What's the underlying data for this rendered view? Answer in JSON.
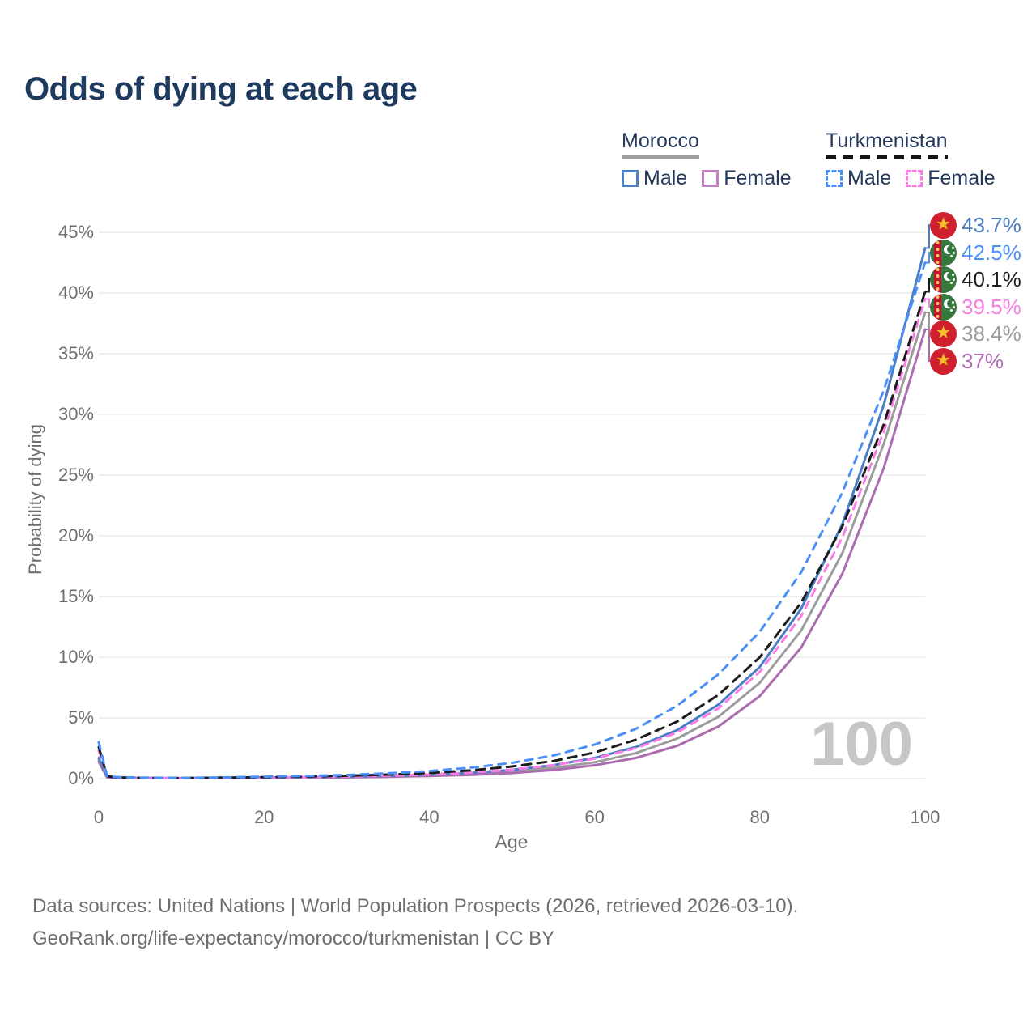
{
  "title": "Odds of dying at each age",
  "legend": {
    "groups": [
      {
        "name": "Morocco",
        "line_style": "solid",
        "underline_color": "#9e9e9e",
        "items": [
          {
            "label": "Male",
            "color": "#4a7ec6",
            "dashed": false
          },
          {
            "label": "Female",
            "color": "#c07fc0",
            "dashed": false
          }
        ]
      },
      {
        "name": "Turkmenistan",
        "line_style": "dashed",
        "underline_color": "#151515",
        "items": [
          {
            "label": "Male",
            "color": "#4a90f7",
            "dashed": true
          },
          {
            "label": "Female",
            "color": "#fb7ce4",
            "dashed": true
          }
        ]
      }
    ]
  },
  "chart_data": {
    "type": "line",
    "title": "Odds of dying at each age",
    "xlabel": "Age",
    "ylabel": "Probability of dying",
    "xlim": [
      0,
      100
    ],
    "ylim_pct": [
      0,
      46
    ],
    "xticks": [
      0,
      20,
      40,
      60,
      80,
      100
    ],
    "yticks": [
      "0%",
      "5%",
      "10%",
      "15%",
      "20%",
      "25%",
      "30%",
      "35%",
      "40%",
      "45%"
    ],
    "grid": "horizontal",
    "legend_position": "top-right",
    "x": [
      0,
      1,
      2,
      5,
      10,
      15,
      20,
      25,
      30,
      35,
      40,
      45,
      50,
      55,
      60,
      65,
      70,
      75,
      80,
      85,
      90,
      95,
      100
    ],
    "series": [
      {
        "name": "Morocco Male",
        "country": "Morocco",
        "color": "#4a7ec6",
        "dashed": false,
        "end_label": "43.7%",
        "values_pct": [
          1.7,
          0.14,
          0.09,
          0.05,
          0.04,
          0.06,
          0.09,
          0.12,
          0.16,
          0.23,
          0.33,
          0.48,
          0.72,
          1.1,
          1.7,
          2.6,
          4.0,
          6.1,
          9.2,
          14.0,
          21.0,
          30.8,
          43.7
        ]
      },
      {
        "name": "Turkmenistan Male",
        "country": "Turkmenistan",
        "color": "#4a90f7",
        "dashed": true,
        "end_label": "42.5%",
        "values_pct": [
          3.0,
          0.22,
          0.13,
          0.08,
          0.06,
          0.1,
          0.16,
          0.22,
          0.3,
          0.44,
          0.62,
          0.9,
          1.3,
          1.9,
          2.8,
          4.1,
          6.0,
          8.6,
          12.1,
          17.0,
          23.6,
          32.0,
          42.5
        ]
      },
      {
        "name": "Turkmenistan",
        "country": "Turkmenistan",
        "color": "#1c1c1c",
        "dashed": true,
        "end_label": "40.1%",
        "values_pct": [
          2.6,
          0.19,
          0.11,
          0.07,
          0.05,
          0.08,
          0.12,
          0.17,
          0.23,
          0.33,
          0.47,
          0.68,
          1.0,
          1.45,
          2.15,
          3.2,
          4.7,
          6.9,
          10.0,
          14.5,
          20.8,
          29.2,
          40.1
        ]
      },
      {
        "name": "Turkmenistan Female",
        "country": "Turkmenistan",
        "color": "#fb7ce4",
        "dashed": true,
        "end_label": "39.5%",
        "values_pct": [
          2.3,
          0.16,
          0.1,
          0.06,
          0.04,
          0.06,
          0.09,
          0.12,
          0.17,
          0.24,
          0.34,
          0.5,
          0.74,
          1.1,
          1.65,
          2.5,
          3.8,
          5.8,
          8.8,
          13.4,
          19.9,
          28.6,
          39.5
        ]
      },
      {
        "name": "Morocco",
        "country": "Morocco",
        "color": "#9c9c9c",
        "dashed": false,
        "end_label": "38.4%",
        "values_pct": [
          1.6,
          0.13,
          0.08,
          0.05,
          0.03,
          0.05,
          0.08,
          0.1,
          0.13,
          0.19,
          0.27,
          0.39,
          0.58,
          0.88,
          1.35,
          2.1,
          3.3,
          5.1,
          7.9,
          12.2,
          18.6,
          27.6,
          38.4
        ]
      },
      {
        "name": "Morocco Female",
        "country": "Morocco",
        "color": "#ab6db0",
        "dashed": false,
        "end_label": "37%",
        "values_pct": [
          1.4,
          0.11,
          0.07,
          0.04,
          0.03,
          0.04,
          0.06,
          0.08,
          0.11,
          0.15,
          0.22,
          0.31,
          0.46,
          0.71,
          1.1,
          1.7,
          2.7,
          4.3,
          6.8,
          10.8,
          16.9,
          25.6,
          37.0
        ]
      }
    ]
  },
  "end_labels": [
    {
      "value": "43.7%",
      "color": "#4a7dbf",
      "flag": "Morocco"
    },
    {
      "value": "42.5%",
      "color": "#4a8ff5",
      "flag": "Turkmenistan"
    },
    {
      "value": "40.1%",
      "color": "#1c1c1c",
      "flag": "Turkmenistan"
    },
    {
      "value": "39.5%",
      "color": "#fb7ce4",
      "flag": "Turkmenistan"
    },
    {
      "value": "38.4%",
      "color": "#9a9a9a",
      "flag": "Morocco"
    },
    {
      "value": "37%",
      "color": "#b06fb5",
      "flag": "Morocco"
    }
  ],
  "age_indicator": "100",
  "footer": {
    "line1": "Data sources: United Nations | World Population Prospects (2026, retrieved 2026-03-10).",
    "line2": "GeoRank.org/life-expectancy/morocco/turkmenistan | CC BY"
  }
}
